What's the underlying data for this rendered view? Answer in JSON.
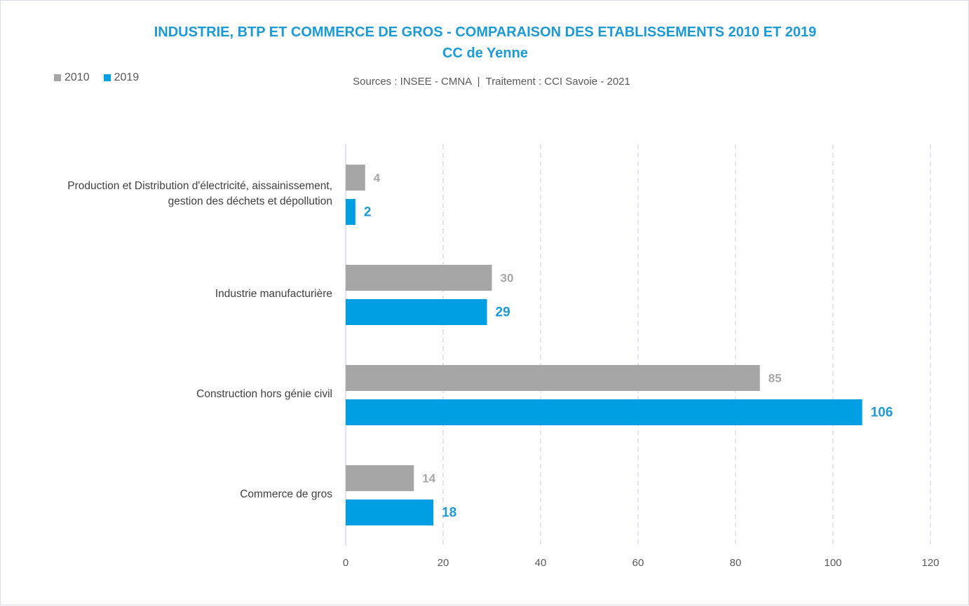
{
  "chart_data": {
    "type": "bar",
    "orientation": "horizontal",
    "title": "INDUSTRIE, BTP ET COMMERCE DE GROS - COMPARAISON DES ETABLISSEMENTS 2010 ET 2019",
    "subtitle": "CC de Yenne",
    "source": "Sources : INSEE - CMNA  |  Traitement : CCI Savoie - 2021",
    "categories": [
      [
        "Production et Distribution d'électricité, aissainissement,",
        "gestion des déchets et dépollution"
      ],
      [
        "Industrie manufacturière"
      ],
      [
        "Construction hors génie civil"
      ],
      [
        "Commerce de gros"
      ]
    ],
    "series": [
      {
        "name": "2010",
        "color": "#a6a6a6",
        "values": [
          4,
          30,
          85,
          14
        ]
      },
      {
        "name": "2019",
        "color": "#009fe3",
        "values": [
          2,
          29,
          106,
          18
        ]
      }
    ],
    "xlim": [
      0,
      120
    ],
    "xticks": [
      "0",
      "20",
      "40",
      "60",
      "80",
      "100",
      "120"
    ],
    "grid": true,
    "legend": "top-left"
  }
}
